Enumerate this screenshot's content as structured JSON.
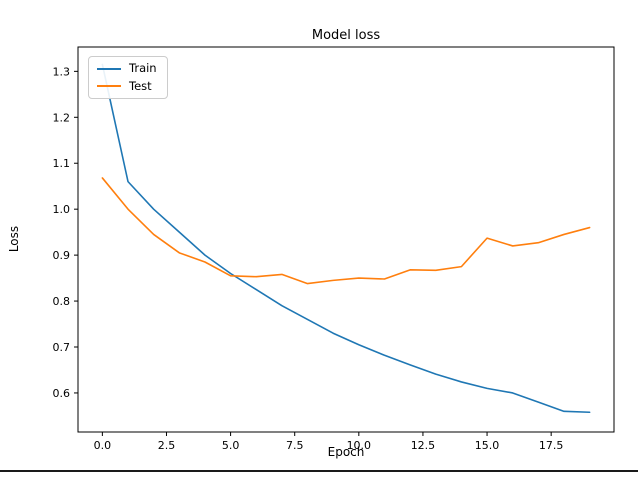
{
  "figure": {
    "title": "Model loss",
    "xlabel": "Epoch",
    "ylabel": "Loss"
  },
  "legend": {
    "items": [
      {
        "label": "Train",
        "color": "#1f77b4"
      },
      {
        "label": "Test",
        "color": "#ff7f0e"
      }
    ]
  },
  "chart_data": {
    "type": "line",
    "title": "Model loss",
    "xlabel": "Epoch",
    "ylabel": "Loss",
    "x": [
      0,
      1,
      2,
      3,
      4,
      5,
      6,
      7,
      8,
      9,
      10,
      11,
      12,
      13,
      14,
      15,
      16,
      17,
      18,
      19
    ],
    "series": [
      {
        "name": "Train",
        "color": "#1f77b4",
        "values": [
          1.315,
          1.06,
          1.0,
          0.95,
          0.9,
          0.86,
          0.825,
          0.79,
          0.76,
          0.73,
          0.705,
          0.682,
          0.661,
          0.641,
          0.624,
          0.61,
          0.6,
          0.58,
          0.56,
          0.558
        ]
      },
      {
        "name": "Test",
        "color": "#ff7f0e",
        "values": [
          1.068,
          1.0,
          0.945,
          0.905,
          0.885,
          0.855,
          0.853,
          0.858,
          0.838,
          0.845,
          0.85,
          0.848,
          0.868,
          0.867,
          0.875,
          0.937,
          0.92,
          0.927,
          0.945,
          0.96
        ]
      }
    ],
    "xlim": [
      -0.95,
      19.95
    ],
    "ylim": [
      0.515,
      1.353
    ],
    "xticks": [
      0,
      2.5,
      5,
      7.5,
      10,
      12.5,
      15,
      17.5
    ],
    "xtick_labels": [
      "0.0",
      "2.5",
      "5.0",
      "7.5",
      "10.0",
      "12.5",
      "15.0",
      "17.5"
    ],
    "yticks": [
      0.6,
      0.7,
      0.8,
      0.9,
      1.0,
      1.1,
      1.2,
      1.3
    ],
    "ytick_labels": [
      "0.6",
      "0.7",
      "0.8",
      "0.9",
      "1.0",
      "1.1",
      "1.2",
      "1.3"
    ],
    "grid": false,
    "legend_position": "upper left"
  }
}
